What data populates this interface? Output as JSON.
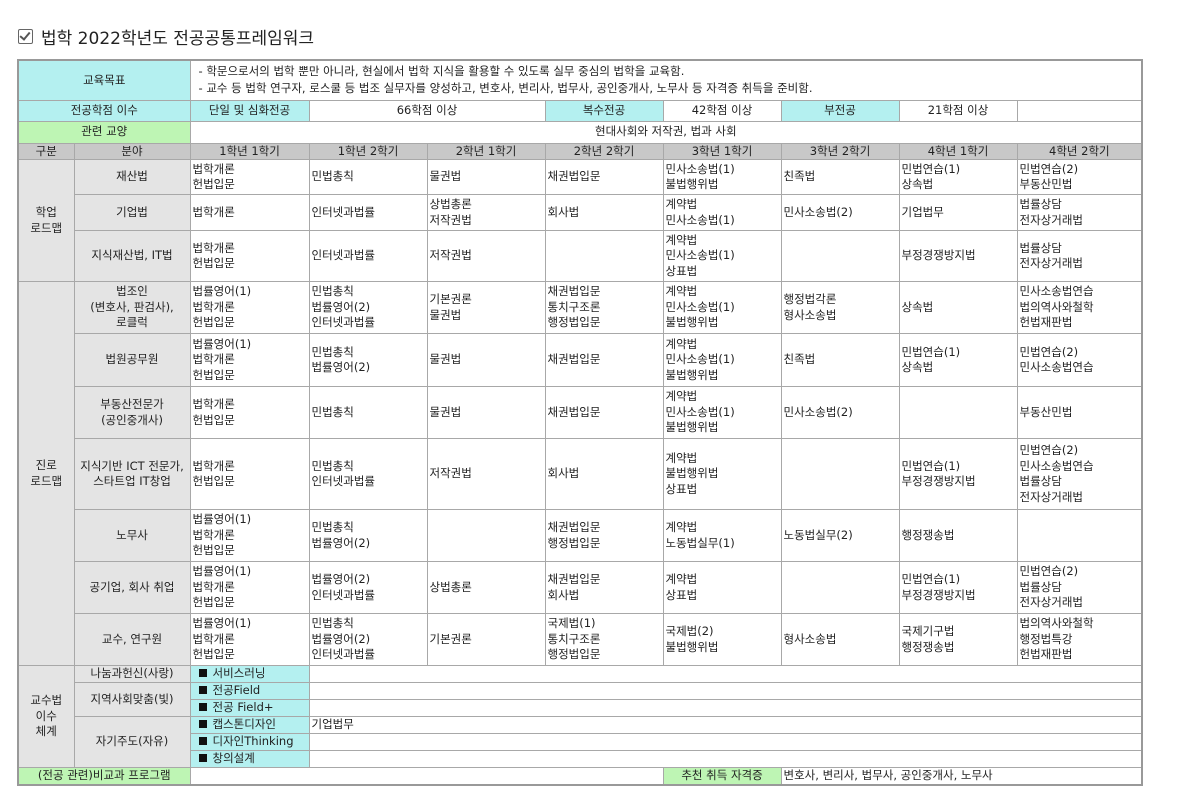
{
  "title": "법학 2022학년도 전공공통프레임워크",
  "goal": {
    "label": "교육목표",
    "lines": [
      "- 학문으로서의 법학 뿐만 아니라, 현실에서 법학 지식을 활용할 수 있도록 실무 중심의 법학을 교육함.",
      "- 교수 등 법학 연구자, 로스쿨 등 법조 실무자를 양성하고, 변호사, 변리사, 법무사, 공인중개사, 노무사 등 자격증 취득을 준비함."
    ]
  },
  "credits": {
    "label": "전공학점 이수",
    "items": [
      {
        "name": "단일 및 심화전공",
        "value": "66학점 이상"
      },
      {
        "name": "복수전공",
        "value": "42학점 이상"
      },
      {
        "name": "부전공",
        "value": "21학점 이상"
      }
    ]
  },
  "liberal": {
    "label": "관련 교양",
    "value": "현대사회와 저작권, 법과 사회"
  },
  "header": [
    "구분",
    "분야",
    "1학년 1학기",
    "1학년 2학기",
    "2학년 1학기",
    "2학년 2학기",
    "3학년 1학기",
    "3학년 2학기",
    "4학년 1학기",
    "4학년 2학기"
  ],
  "groups": [
    {
      "name": "학업\n로드맵",
      "rows": [
        {
          "field": "재산법",
          "cells": [
            "법학개론\n헌법입문",
            "민법총칙",
            "물권법",
            "채권법입문",
            "민사소송법(1)\n불법행위법",
            "친족법",
            "민법연습(1)\n상속법",
            "민법연습(2)\n부동산민법"
          ]
        },
        {
          "field": "기업법",
          "cells": [
            "법학개론",
            "인터넷과법률",
            "상법총론\n저작권법",
            "회사법",
            "계약법\n민사소송법(1)",
            "민사소송법(2)",
            "기업법무",
            "법률상담\n전자상거래법"
          ]
        },
        {
          "field": "지식재산법, IT법",
          "cells": [
            "법학개론\n헌법입문",
            "인터넷과법률",
            "저작권법",
            "",
            "계약법\n민사소송법(1)\n상표법",
            "",
            "부정경쟁방지법",
            "법률상담\n전자상거래법"
          ]
        }
      ]
    },
    {
      "name": "진로\n로드맵",
      "rows": [
        {
          "field": "법조인\n(변호사, 판검사),\n로클럭",
          "cells": [
            "법률영어(1)\n법학개론\n헌법입문",
            "민법총칙\n법률영어(2)\n인터넷과법률",
            "기본권론\n물권법",
            "채권법입문\n통치구조론\n행정법입문",
            "계약법\n민사소송법(1)\n불법행위법",
            "행정법각론\n형사소송법",
            "상속법",
            "민사소송법연습\n법의역사와철학\n헌법재판법"
          ]
        },
        {
          "field": "법원공무원",
          "cells": [
            "법률영어(1)\n법학개론\n헌법입문",
            "민법총칙\n법률영어(2)",
            "물권법",
            "채권법입문",
            "계약법\n민사소송법(1)\n불법행위법",
            "친족법",
            "민법연습(1)\n상속법",
            "민법연습(2)\n민사소송법연습"
          ]
        },
        {
          "field": "부동산전문가\n(공인중개사)",
          "cells": [
            "법학개론\n헌법입문",
            "민법총칙",
            "물권법",
            "채권법입문",
            "계약법\n민사소송법(1)\n불법행위법",
            "민사소송법(2)",
            "",
            "부동산민법"
          ]
        },
        {
          "field": "지식기반 ICT 전문가,\n스타트업 IT창업",
          "cells": [
            "법학개론\n헌법입문",
            "민법총칙\n인터넷과법률",
            "저작권법",
            "회사법",
            "계약법\n불법행위법\n상표법",
            "",
            "민법연습(1)\n부정경쟁방지법",
            "민법연습(2)\n민사소송법연습\n법률상담\n전자상거래법"
          ]
        },
        {
          "field": "노무사",
          "cells": [
            "법률영어(1)\n법학개론\n헌법입문",
            "민법총칙\n법률영어(2)",
            "",
            "채권법입문\n행정법입문",
            "계약법\n노동법실무(1)",
            "노동법실무(2)",
            "행정쟁송법",
            ""
          ]
        },
        {
          "field": "공기업, 회사 취업",
          "cells": [
            "법률영어(1)\n법학개론\n헌법입문",
            "법률영어(2)\n인터넷과법률",
            "상법총론",
            "채권법입문\n회사법",
            "계약법\n상표법",
            "",
            "민법연습(1)\n부정경쟁방지법",
            "민법연습(2)\n법률상담\n전자상거래법"
          ]
        },
        {
          "field": "교수, 연구원",
          "cells": [
            "법률영어(1)\n법학개론\n헌법입문",
            "민법총칙\n법률영어(2)\n인터넷과법률",
            "기본권론",
            "국제법(1)\n통치구조론\n행정법입문",
            "국제법(2)\n불법행위법",
            "형사소송법",
            "국제기구법\n행정쟁송법",
            "법의역사와철학\n행정법특강\n헌법재판법"
          ]
        }
      ]
    }
  ],
  "method": {
    "label": "교수법\n이수\n체계",
    "cats": [
      {
        "name": "나눔과헌신(사랑)",
        "progs": [
          {
            "name": "서비스러닝",
            "value": ""
          }
        ]
      },
      {
        "name": "지역사회맞춤(빛)",
        "progs": [
          {
            "name": "전공Field",
            "value": ""
          },
          {
            "name": "전공 Field+",
            "value": ""
          }
        ]
      },
      {
        "name": "자기주도(자유)",
        "progs": [
          {
            "name": "캡스톤디자인",
            "value": "기업법무"
          },
          {
            "name": "디자인Thinking",
            "value": ""
          },
          {
            "name": "창의설계",
            "value": ""
          }
        ]
      }
    ]
  },
  "extra": {
    "label": "(전공 관련)비교과 프로그램",
    "value": "",
    "cert_label": "추천 취득 자격증",
    "cert_value": "변호사, 변리사, 법무사, 공인중개사, 노무사"
  },
  "colors": {
    "cyan": "#b4f0f0",
    "green": "#bef5b4",
    "header": "#c8c8c8",
    "label": "#e4e4e4"
  }
}
